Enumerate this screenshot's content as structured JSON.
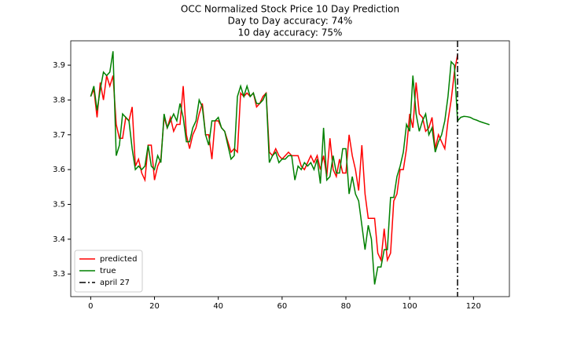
{
  "chart_data": {
    "type": "line",
    "title": "OCC Normalized Stock Price 10 Day Prediction",
    "subtitle": [
      "Day to Day accuracy: 74%",
      "10 day accuracy: 75%"
    ],
    "xlim": [
      -6.25,
      131.25
    ],
    "xticks": [
      0,
      20,
      40,
      60,
      80,
      100,
      120
    ],
    "ylim": [
      3.235,
      3.97
    ],
    "yticks": [
      3.3,
      3.4,
      3.5,
      3.6,
      3.7,
      3.8,
      3.9
    ],
    "legend": "lower left",
    "series": [
      {
        "name": "predicted",
        "color": "#ff0000",
        "values": [
          3.81,
          3.83,
          3.75,
          3.85,
          3.8,
          3.87,
          3.84,
          3.87,
          3.73,
          3.69,
          3.69,
          3.75,
          3.74,
          3.78,
          3.61,
          3.63,
          3.59,
          3.57,
          3.67,
          3.67,
          3.57,
          3.61,
          3.63,
          3.75,
          3.72,
          3.75,
          3.71,
          3.73,
          3.73,
          3.84,
          3.7,
          3.66,
          3.7,
          3.72,
          3.76,
          3.79,
          3.7,
          3.7,
          3.63,
          3.74,
          3.74,
          3.72,
          3.71,
          3.68,
          3.65,
          3.66,
          3.65,
          3.82,
          3.81,
          3.82,
          3.81,
          3.82,
          3.78,
          3.79,
          3.81,
          3.82,
          3.65,
          3.64,
          3.66,
          3.64,
          3.63,
          3.64,
          3.65,
          3.64,
          3.64,
          3.64,
          3.61,
          3.6,
          3.62,
          3.64,
          3.62,
          3.64,
          3.6,
          3.64,
          3.58,
          3.69,
          3.6,
          3.58,
          3.63,
          3.59,
          3.59,
          3.7,
          3.64,
          3.6,
          3.54,
          3.67,
          3.53,
          3.46,
          3.46,
          3.46,
          3.36,
          3.34,
          3.43,
          3.34,
          3.36,
          3.51,
          3.53,
          3.6,
          3.6,
          3.66,
          3.76,
          3.72,
          3.85,
          3.76,
          3.75,
          3.71,
          3.72,
          3.75,
          3.66,
          3.7,
          3.68,
          3.66,
          3.74,
          3.8,
          3.88,
          3.93
        ]
      },
      {
        "name": "true",
        "color": "#008000",
        "values": [
          3.81,
          3.84,
          3.77,
          3.83,
          3.88,
          3.87,
          3.88,
          3.94,
          3.64,
          3.67,
          3.76,
          3.75,
          3.74,
          3.66,
          3.6,
          3.61,
          3.6,
          3.61,
          3.67,
          3.61,
          3.6,
          3.64,
          3.62,
          3.76,
          3.72,
          3.74,
          3.76,
          3.74,
          3.79,
          3.75,
          3.68,
          3.68,
          3.72,
          3.74,
          3.8,
          3.78,
          3.7,
          3.67,
          3.74,
          3.74,
          3.75,
          3.72,
          3.71,
          3.67,
          3.63,
          3.64,
          3.81,
          3.84,
          3.81,
          3.84,
          3.81,
          3.82,
          3.79,
          3.79,
          3.8,
          3.82,
          3.62,
          3.64,
          3.65,
          3.62,
          3.63,
          3.63,
          3.64,
          3.64,
          3.57,
          3.61,
          3.6,
          3.62,
          3.61,
          3.62,
          3.6,
          3.63,
          3.56,
          3.72,
          3.57,
          3.58,
          3.64,
          3.59,
          3.59,
          3.66,
          3.66,
          3.53,
          3.58,
          3.53,
          3.51,
          3.44,
          3.37,
          3.44,
          3.4,
          3.27,
          3.32,
          3.32,
          3.37,
          3.37,
          3.52,
          3.52,
          3.58,
          3.61,
          3.65,
          3.73,
          3.71,
          3.87,
          3.76,
          3.71,
          3.74,
          3.76,
          3.7,
          3.72,
          3.65,
          3.68,
          3.7,
          3.74,
          3.81,
          3.91,
          3.9,
          3.74,
          3.75,
          3.753,
          3.752,
          3.75,
          3.745,
          3.742,
          3.738,
          3.735,
          3.732,
          3.729
        ]
      }
    ],
    "vlines": [
      {
        "name": "april 27",
        "x": 115,
        "color": "#000000"
      }
    ]
  }
}
